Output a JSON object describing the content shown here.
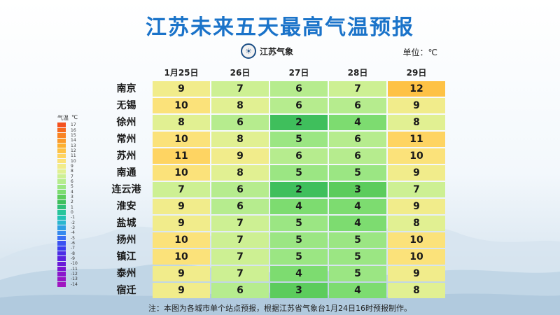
{
  "title": "江苏未来五天最高气温预报",
  "logo": {
    "text": "江苏气象",
    "icon": "weather-bureau-emblem-icon"
  },
  "unit_label": "单位：℃",
  "legend": {
    "title": "气温",
    "unit": "℃",
    "ticks": [
      "17",
      "16",
      "15",
      "14",
      "13",
      "12",
      "11",
      "10",
      "9",
      "8",
      "7",
      "6",
      "5",
      "4",
      "3",
      "2",
      "1",
      "0",
      "-1",
      "-2",
      "-3",
      "-4",
      "-5",
      "-6",
      "-7",
      "-8",
      "-9",
      "-10",
      "-11",
      "-12",
      "-13",
      "-14"
    ],
    "colors": [
      "#f4511e",
      "#f66a1f",
      "#f98424",
      "#fb9a2a",
      "#fdb030",
      "#fec245",
      "#fed462",
      "#fbe27a",
      "#f1ec8b",
      "#e1f092",
      "#cdf093",
      "#b6ec8e",
      "#9be683",
      "#7ddc70",
      "#5ccc5c",
      "#3fbf5c",
      "#2fbf78",
      "#27c59b",
      "#23c2b6",
      "#2ab6cf",
      "#2f9fe3",
      "#3589ee",
      "#3a6ef4",
      "#3a52f2",
      "#3a3cef",
      "#4a2ce6",
      "#5a22df",
      "#6a1ad8",
      "#7a16d2",
      "#8a16cc",
      "#9616c6",
      "#a016c0"
    ]
  },
  "footnote": "注：本图为各城市单个站点预报，根据江苏省气象台1月24日16时预报制作。",
  "chart_data": {
    "type": "heatmap",
    "title": "江苏未来五天最高气温预报",
    "columns": [
      "1月25日",
      "26日",
      "27日",
      "28日",
      "29日"
    ],
    "rows": [
      {
        "city": "南京",
        "values": [
          9,
          7,
          6,
          7,
          12
        ]
      },
      {
        "city": "无锡",
        "values": [
          10,
          8,
          6,
          6,
          9
        ]
      },
      {
        "city": "徐州",
        "values": [
          8,
          6,
          2,
          4,
          8
        ]
      },
      {
        "city": "常州",
        "values": [
          10,
          8,
          5,
          6,
          11
        ]
      },
      {
        "city": "苏州",
        "values": [
          11,
          9,
          6,
          6,
          10
        ]
      },
      {
        "city": "南通",
        "values": [
          10,
          8,
          5,
          5,
          9
        ]
      },
      {
        "city": "连云港",
        "values": [
          7,
          6,
          2,
          3,
          7
        ]
      },
      {
        "city": "淮安",
        "values": [
          9,
          6,
          4,
          4,
          9
        ]
      },
      {
        "city": "盐城",
        "values": [
          9,
          7,
          5,
          4,
          8
        ]
      },
      {
        "city": "扬州",
        "values": [
          10,
          7,
          5,
          5,
          10
        ]
      },
      {
        "city": "镇江",
        "values": [
          10,
          7,
          5,
          5,
          10
        ]
      },
      {
        "city": "泰州",
        "values": [
          9,
          7,
          4,
          5,
          9
        ]
      },
      {
        "city": "宿迁",
        "values": [
          9,
          6,
          3,
          4,
          8
        ]
      }
    ],
    "unit": "℃"
  }
}
